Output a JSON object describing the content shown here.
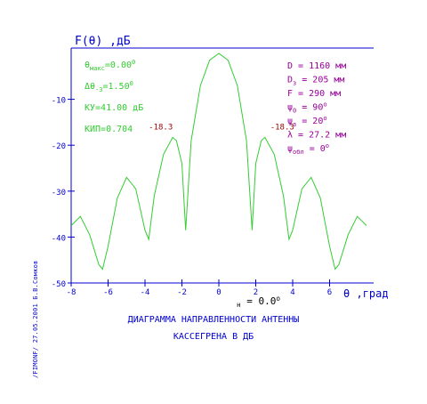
{
  "chart_data": {
    "type": "line",
    "ylabel": "F(θ) ,дБ",
    "xlabel": "θ ,град",
    "xlim": [
      -8,
      8
    ],
    "ylim": [
      -50,
      0
    ],
    "xticks": [
      "-8",
      "-6",
      "-4",
      "-2",
      "0",
      "2",
      "4",
      "6"
    ],
    "yticks": [
      "-10",
      "-20",
      "-30",
      "-40",
      "-50"
    ],
    "series": [
      {
        "x": [
          -8.0,
          -7.5,
          -7.0,
          -6.5,
          -6.3,
          -6.0,
          -5.5,
          -5.0,
          -4.5,
          -4.0,
          -3.8,
          -3.5,
          -3.0,
          -2.5,
          -2.3,
          -2.0,
          -1.8,
          -1.5,
          -1.0,
          -0.5,
          0.0,
          0.5,
          1.0,
          1.5,
          1.8,
          2.0,
          2.3,
          2.5,
          3.0,
          3.5,
          3.8,
          4.0,
          4.5,
          5.0,
          5.5,
          6.0,
          6.3,
          6.5,
          7.0,
          7.5,
          8.0
        ],
        "values": [
          -37.5,
          -35.5,
          -39.5,
          -46.0,
          -47.0,
          -42.0,
          -31.5,
          -27.0,
          -29.5,
          -38.5,
          -40.5,
          -31.0,
          -22.0,
          -18.3,
          -19.0,
          -24.0,
          -38.5,
          -19.0,
          -7.0,
          -1.5,
          0.0,
          -1.5,
          -7.0,
          -19.0,
          -38.5,
          -24.0,
          -19.0,
          -18.3,
          -22.0,
          -31.0,
          -40.5,
          -38.5,
          -29.5,
          -27.0,
          -31.5,
          -42.0,
          -47.0,
          -46.0,
          -39.5,
          -35.5,
          -37.5
        ]
      }
    ],
    "annotations": [
      {
        "text": "-18.3",
        "x": -2.3,
        "y": -18.3
      },
      {
        "text": "-18.3",
        "x": 2.3,
        "y": -18.3
      }
    ],
    "grid": false
  },
  "left_params": [
    {
      "label": "θ",
      "sub": "макс",
      "value": "=0.00",
      "sup": "0"
    },
    {
      "label": "Δθ",
      "sub": "-3",
      "value": "=1.50",
      "sup": "0"
    },
    {
      "label": "КУ=41.00 дБ",
      "sub": "",
      "value": "",
      "sup": ""
    },
    {
      "label": "КИП=0.704",
      "sub": "",
      "value": "",
      "sup": ""
    }
  ],
  "right_params": [
    {
      "label": "D = 1160 мм",
      "sub": "",
      "value": "",
      "sup": ""
    },
    {
      "label": "D",
      "sub": "з",
      "value": " = 205 мм",
      "sup": ""
    },
    {
      "label": "F = 290 мм",
      "sub": "",
      "value": "",
      "sup": ""
    },
    {
      "label": "ψ",
      "sub": "0",
      "value": " = 90",
      "sup": "o"
    },
    {
      "label": "ψ",
      "sub": "з",
      "value": " = 20",
      "sup": "o"
    },
    {
      "label": "λ = 27.2 мм",
      "sub": "",
      "value": "",
      "sup": ""
    },
    {
      "label": "ψ",
      "sub": "обл",
      "value": " = 0",
      "sup": "o"
    }
  ],
  "phi_label": {
    "arrow": "→",
    "symbol": "φ",
    "sub": "н",
    "value": " = 0.0",
    "sup": "o"
  },
  "side_text": "/FIMONF/  27.05.2001  Б.В.Сомков",
  "caption_line1": "ДИАГРАММА НАПРАВЛЕННОСТИ АНТЕННЫ",
  "caption_line2": "КАССЕГРЕНА В ДБ",
  "colors": {
    "axis": "#0000cc",
    "curve": "#33cc33",
    "params_left": "#33cc33",
    "params_right": "#990099",
    "annotation": "#990000"
  }
}
